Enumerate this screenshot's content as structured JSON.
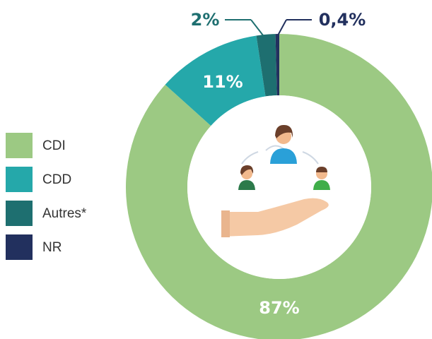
{
  "chart_data": {
    "type": "donut",
    "categories": [
      "CDI",
      "CDD",
      "Autres*",
      "NR"
    ],
    "values": [
      87,
      11,
      2,
      0.4
    ],
    "value_labels": [
      "87%",
      "11%",
      "2%",
      "0,4%"
    ],
    "colors": [
      "#9cc983",
      "#25a8aa",
      "#1e6f70",
      "#22305e"
    ]
  }
}
